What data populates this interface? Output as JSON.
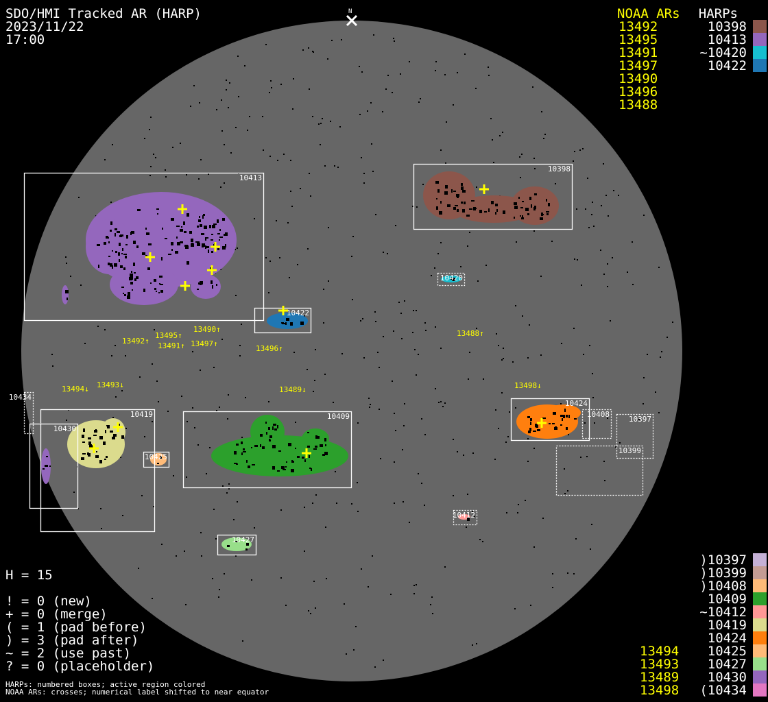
{
  "header": {
    "title": "SDO/HMI Tracked AR (HARP)",
    "date": "2023/11/22",
    "time": "17:00",
    "north_label": "N"
  },
  "legend_top": {
    "noaa_header": "NOAA ARs",
    "harp_header": "HARPs",
    "noaa": [
      "13492",
      "13495",
      "13491",
      "13497",
      "13490",
      "13496",
      "13488"
    ],
    "harps": [
      {
        "label": "10398",
        "color": "#8c564b"
      },
      {
        "label": "10413",
        "color": "#9467bd"
      },
      {
        "label": "~10420",
        "color": "#17becf"
      },
      {
        "label": "10422",
        "color": "#1f77b4"
      }
    ]
  },
  "legend_bottom": {
    "rows": [
      {
        "noaa": "",
        "harp": ")10397",
        "color": "#c5b0d5"
      },
      {
        "noaa": "",
        "harp": ")10399",
        "color": "#c49c94"
      },
      {
        "noaa": "",
        "harp": ")10408",
        "color": "#ffbb78"
      },
      {
        "noaa": "",
        "harp": "10409",
        "color": "#2ca02c"
      },
      {
        "noaa": "",
        "harp": "~10412",
        "color": "#ff9896"
      },
      {
        "noaa": "",
        "harp": "10419",
        "color": "#dbdb8d"
      },
      {
        "noaa": "",
        "harp": "10424",
        "color": "#ff7f0e"
      },
      {
        "noaa": "13494",
        "harp": "10425",
        "color": "#ffbb78"
      },
      {
        "noaa": "13493",
        "harp": "10427",
        "color": "#98df8a"
      },
      {
        "noaa": "13489",
        "harp": "10430",
        "color": "#9467bd"
      },
      {
        "noaa": "13498",
        "harp": "(10434",
        "color": "#e377c2"
      }
    ]
  },
  "stats": {
    "h": "H = 15",
    "lines": [
      "! = 0 (new)",
      "+ = 0 (merge)",
      "( = 1 (pad before)",
      ") = 3 (pad after)",
      "~ = 2 (use past)",
      "? = 0 (placeholder)"
    ]
  },
  "footnote": [
    "HARPs: numbered boxes; active region colored",
    "NOAA ARs: crosses; numerical label shifted to near equator"
  ],
  "colors": {
    "disk": "#666666",
    "background": "#000000",
    "noaa": "#ffff00",
    "box": "#ffffff"
  },
  "harp_boxes": [
    {
      "id": "10413",
      "color": "#9467bd",
      "dotted": false
    },
    {
      "id": "10398",
      "color": "#8c564b",
      "dotted": false
    },
    {
      "id": "10420",
      "color": "#17becf",
      "dotted": true
    },
    {
      "id": "10422",
      "color": "#1f77b4",
      "dotted": false
    },
    {
      "id": "10419",
      "color": "#dbdb8d",
      "dotted": false
    },
    {
      "id": "10430",
      "color": "#9467bd",
      "dotted": false
    },
    {
      "id": "10434",
      "color": "#e377c2",
      "dotted": true
    },
    {
      "id": "10425",
      "color": "#ffbb78",
      "dotted": false
    },
    {
      "id": "10409",
      "color": "#2ca02c",
      "dotted": false
    },
    {
      "id": "10424",
      "color": "#ff7f0e",
      "dotted": false
    },
    {
      "id": "10408",
      "color": "#ffbb78",
      "dotted": true
    },
    {
      "id": "10397",
      "color": "#c5b0d5",
      "dotted": true
    },
    {
      "id": "10399",
      "color": "#c49c94",
      "dotted": true
    },
    {
      "id": "10412",
      "color": "#ff9896",
      "dotted": true
    },
    {
      "id": "10427",
      "color": "#98df8a",
      "dotted": false
    }
  ],
  "noaa_labels": [
    "13492↑",
    "13495↑",
    "13491↑",
    "13490↑",
    "13497↑",
    "13496↑",
    "13488↑",
    "13494↓",
    "13493↓",
    "13489↓",
    "13498↓"
  ]
}
